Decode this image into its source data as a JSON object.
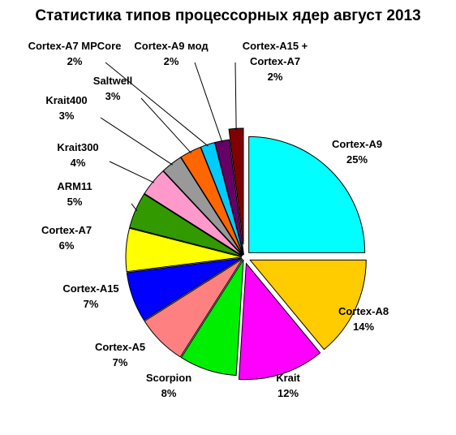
{
  "chart_data": {
    "type": "pie",
    "title": "Статистика типов процессорных ядер август 2013",
    "slices": [
      {
        "label": "Cortex-A9",
        "value": 25,
        "value_label": "25%",
        "color": "#00ffff"
      },
      {
        "label": "Cortex-A8",
        "value": 14,
        "value_label": "14%",
        "color": "#ffcc00"
      },
      {
        "label": "Krait",
        "value": 12,
        "value_label": "12%",
        "color": "#ff00ff"
      },
      {
        "label": "Scorpion",
        "value": 8,
        "value_label": "8%",
        "color": "#00ee00"
      },
      {
        "label": "Cortex-A5",
        "value": 7,
        "value_label": "7%",
        "color": "#ff8080"
      },
      {
        "label": "Cortex-A15",
        "value": 7,
        "value_label": "7%",
        "color": "#0000ff"
      },
      {
        "label": "Cortex-A7",
        "value": 6,
        "value_label": "6%",
        "color": "#ffff00"
      },
      {
        "label": "ARM11",
        "value": 5,
        "value_label": "5%",
        "color": "#339900"
      },
      {
        "label": "Krait300",
        "value": 4,
        "value_label": "4%",
        "color": "#ff99cc"
      },
      {
        "label": "Krait400",
        "value": 3,
        "value_label": "3%",
        "color": "#999999"
      },
      {
        "label": "Saltwell",
        "value": 3,
        "value_label": "3%",
        "color": "#ff6600"
      },
      {
        "label": "Cortex-A7 MPCore",
        "value": 2,
        "value_label": "2%",
        "color": "#00ccff"
      },
      {
        "label": "Cortex-A9 мод",
        "value": 2,
        "value_label": "2%",
        "color": "#660066"
      },
      {
        "label": "Cortex-A15 + Cortex-A7",
        "label_lines": [
          "Cortex-A15 +",
          "Cortex-A7"
        ],
        "value": 2,
        "value_label": "2%",
        "color": "#800000"
      }
    ]
  }
}
